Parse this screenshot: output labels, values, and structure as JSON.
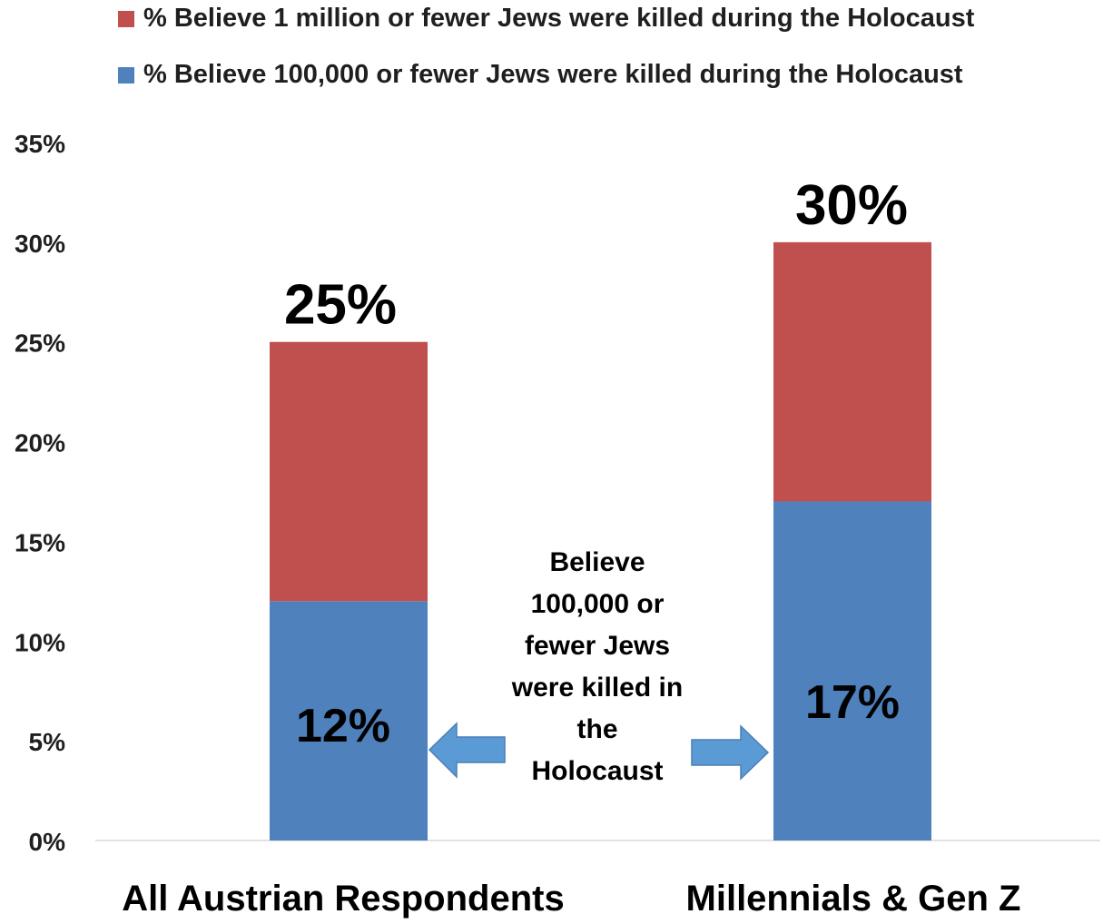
{
  "legend": {
    "red_label": "% Believe 1 million or fewer Jews were killed during the Holocaust",
    "blue_label": "% Believe 100,000 or fewer Jews were killed during the Holocaust"
  },
  "annotation": {
    "lines": [
      "Believe",
      "100,000 or",
      "fewer Jews",
      "were killed in",
      "the",
      "Holocaust"
    ]
  },
  "colors": {
    "red": "#C0504D",
    "blue": "#4F81BD",
    "arrow": "#5B9BD5",
    "axis": "#D9D9D9"
  },
  "chart_data": {
    "type": "bar",
    "stacked": true,
    "categories": [
      "All Austrian Respondents",
      "Millennials & Gen Z"
    ],
    "series": [
      {
        "name": "% Believe 100,000 or fewer Jews were killed during the Holocaust",
        "values": [
          12,
          17
        ],
        "labels": [
          "12%",
          "17%"
        ],
        "color": "#4F81BD"
      },
      {
        "name": "% Believe 1 million or fewer Jews were killed during the Holocaust",
        "values": [
          13,
          13
        ],
        "color": "#C0504D"
      }
    ],
    "totals": [
      25,
      30
    ],
    "total_labels": [
      "25%",
      "30%"
    ],
    "yticks": [
      "0%",
      "5%",
      "10%",
      "15%",
      "20%",
      "25%",
      "30%",
      "35%"
    ],
    "ylim": [
      0,
      35
    ],
    "grid": false,
    "legend_position": "top"
  }
}
